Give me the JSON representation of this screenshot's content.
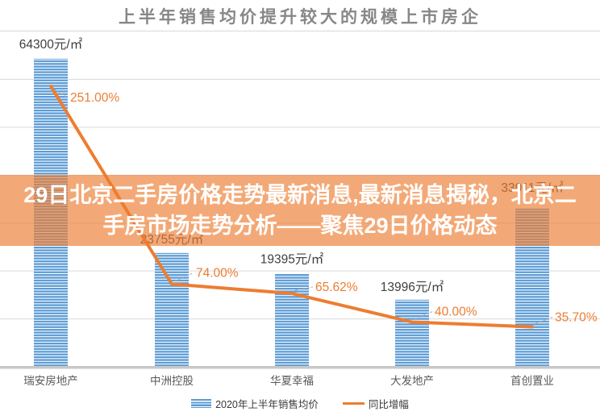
{
  "title": "上半年销售均价提升较大的规模上市房企",
  "overlay": {
    "lines": [
      "29日北京二手房价格走势最新消息,最新消息揭秘，北京二",
      "手房市场走势分析——聚焦29日价格动态"
    ]
  },
  "colors": {
    "bar": "#5B9BD5",
    "line": "#ED7D31",
    "percent_text": "#ED7D31",
    "value_text": "#404040",
    "category_text": "#595959",
    "gridline": "#D9D9D9",
    "axis_line": "#C8C8C8",
    "leader": "#ABABAB",
    "title_text": "#878787",
    "overlay_bg": "rgba(237,125,49,0.66)",
    "overlay_text": "#FFFFFF"
  },
  "chart_data": {
    "type": "bar+line combo",
    "title": "上半年销售均价提升较大的规模上市房企",
    "categories": [
      "瑞安房地产",
      "中洲控股",
      "华夏幸福",
      "大发地产",
      "首创置业"
    ],
    "series": [
      {
        "name": "2020年上半年销售均价",
        "type": "bar",
        "axis": "left",
        "unit": "元/㎡",
        "values": [
          64300,
          23755,
          19395,
          13996,
          33011
        ],
        "labels": [
          "64300元/㎡",
          "23755元/㎡",
          "19395元/㎡",
          "13996元/㎡",
          "33011元/㎡"
        ]
      },
      {
        "name": "同比增幅",
        "type": "line",
        "axis": "right",
        "unit": "%",
        "values": [
          251.0,
          74.0,
          65.62,
          40.0,
          35.7
        ],
        "labels": [
          "251.00%",
          "74.00%",
          "65.62%",
          "40.00%",
          "35.70%"
        ]
      }
    ],
    "left_axis_range": [
      0,
      70000
    ],
    "right_axis_range": [
      0,
      300
    ],
    "grid": true,
    "legend_position": "bottom"
  }
}
